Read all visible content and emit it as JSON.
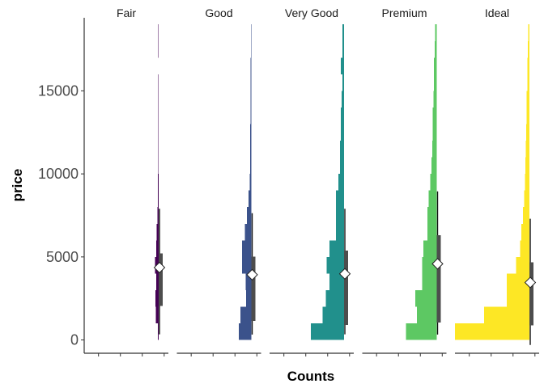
{
  "chart_data": {
    "type": "bar",
    "orientation": "horizontal",
    "xlabel": "Counts",
    "ylabel": "price",
    "ylim": [
      -800,
      19400
    ],
    "y_ticks": [
      0,
      5000,
      10000,
      15000
    ],
    "y_tick_labels": [
      "0",
      "5000",
      "10000",
      "15000"
    ],
    "bin_width": 1000,
    "bin_starts": [
      0,
      1000,
      2000,
      3000,
      4000,
      5000,
      6000,
      7000,
      8000,
      9000,
      10000,
      11000,
      12000,
      13000,
      14000,
      15000,
      16000,
      17000,
      18000
    ],
    "count_max": 5600,
    "grid": false,
    "legend": "none",
    "panels": [
      {
        "label": "Fair",
        "color": "#440154",
        "counts": [
          60,
          200,
          240,
          180,
          260,
          180,
          140,
          90,
          70,
          60,
          40,
          40,
          30,
          30,
          25,
          20,
          10,
          20,
          20
        ],
        "mean": 4359,
        "box": {
          "q1": 2050,
          "q3": 5206,
          "lower": 337,
          "upper": 7900
        }
      },
      {
        "label": "Good",
        "color": "#3B528B",
        "counts": [
          930,
          820,
          400,
          420,
          700,
          700,
          500,
          330,
          200,
          130,
          100,
          90,
          80,
          70,
          60,
          60,
          50,
          40,
          30
        ],
        "mean": 3929,
        "box": {
          "q1": 1145,
          "q3": 5028,
          "lower": 327,
          "upper": 7630
        }
      },
      {
        "label": "Very Good",
        "color": "#21908C",
        "counts": [
          2500,
          1600,
          1380,
          1100,
          1300,
          1100,
          600,
          600,
          600,
          420,
          300,
          300,
          240,
          240,
          180,
          120,
          240,
          120,
          120
        ],
        "mean": 3982,
        "box": {
          "q1": 912,
          "q3": 5373,
          "lower": 336,
          "upper": 7900
        }
      },
      {
        "label": "Premium",
        "color": "#5DC863",
        "counts": [
          2300,
          1500,
          1600,
          1100,
          1100,
          1000,
          700,
          700,
          600,
          500,
          400,
          350,
          300,
          300,
          250,
          200,
          200,
          150,
          120
        ],
        "mean": 4584,
        "box": {
          "q1": 1046,
          "q3": 6296,
          "lower": 326,
          "upper": 8950
        }
      },
      {
        "label": "Ideal",
        "color": "#FDE725",
        "counts": [
          5600,
          3400,
          1700,
          1700,
          1000,
          700,
          600,
          500,
          400,
          350,
          300,
          280,
          250,
          200,
          200,
          150,
          150,
          120,
          100
        ],
        "mean": 3458,
        "box": {
          "q1": 878,
          "q3": 4678,
          "lower": -300,
          "upper": 7300
        }
      }
    ]
  }
}
